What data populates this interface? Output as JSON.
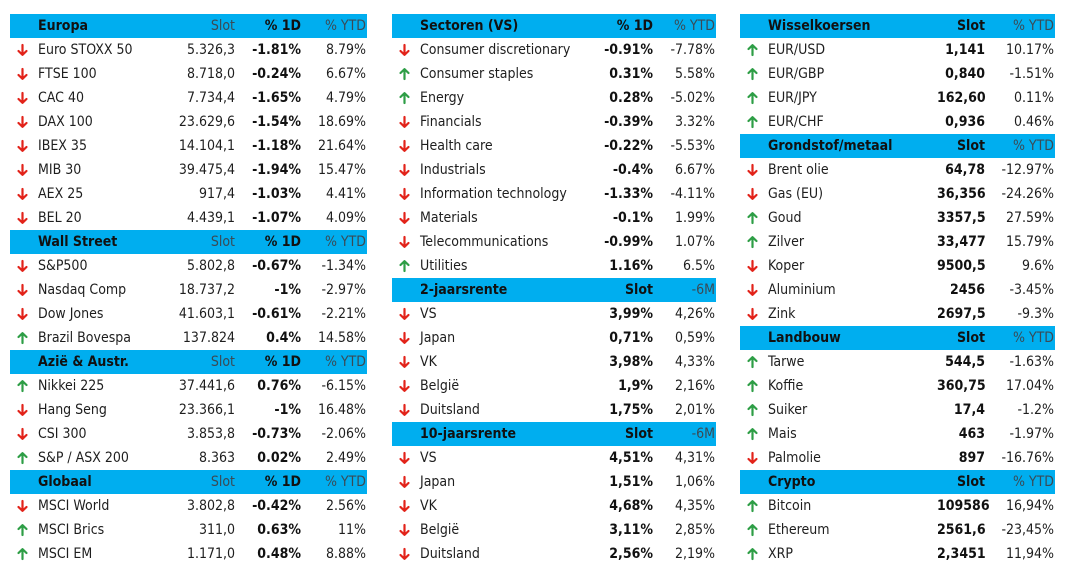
{
  "colors": {
    "header_bg": "#00aeef",
    "arrow_up": "#2e9e46",
    "arrow_down": "#e2231a"
  },
  "columns": [
    {
      "sections": [
        {
          "title": "Europa",
          "headers": [
            "Slot",
            "% 1D",
            "% YTD"
          ],
          "rows": [
            {
              "dir": "down",
              "name": "Euro STOXX 50",
              "v1": "5.326,3",
              "v2": "-1.81%",
              "v3": "8.79%"
            },
            {
              "dir": "down",
              "name": "FTSE 100",
              "v1": "8.718,0",
              "v2": "-0.24%",
              "v3": "6.67%"
            },
            {
              "dir": "down",
              "name": "CAC 40",
              "v1": "7.734,4",
              "v2": "-1.65%",
              "v3": "4.79%"
            },
            {
              "dir": "down",
              "name": "DAX 100",
              "v1": "23.629,6",
              "v2": "-1.54%",
              "v3": "18.69%"
            },
            {
              "dir": "down",
              "name": "IBEX 35",
              "v1": "14.104,1",
              "v2": "-1.18%",
              "v3": "21.64%"
            },
            {
              "dir": "down",
              "name": "MIB 30",
              "v1": "39.475,4",
              "v2": "-1.94%",
              "v3": "15.47%"
            },
            {
              "dir": "down",
              "name": "AEX 25",
              "v1": "917,4",
              "v2": "-1.03%",
              "v3": "4.41%"
            },
            {
              "dir": "down",
              "name": "BEL 20",
              "v1": "4.439,1",
              "v2": "-1.07%",
              "v3": "4.09%"
            }
          ]
        },
        {
          "title": "Wall Street",
          "headers": [
            "Slot",
            "% 1D",
            "% YTD"
          ],
          "rows": [
            {
              "dir": "down",
              "name": "S&P500",
              "v1": "5.802,8",
              "v2": "-0.67%",
              "v3": "-1.34%"
            },
            {
              "dir": "down",
              "name": "Nasdaq Comp",
              "v1": "18.737,2",
              "v2": "-1%",
              "v3": "-2.97%"
            },
            {
              "dir": "down",
              "name": "Dow Jones",
              "v1": "41.603,1",
              "v2": "-0.61%",
              "v3": "-2.21%"
            },
            {
              "dir": "up",
              "name": "Brazil Bovespa",
              "v1": "137.824",
              "v2": "0.4%",
              "v3": "14.58%"
            }
          ]
        },
        {
          "title": "Azië & Austr.",
          "headers": [
            "Slot",
            "% 1D",
            "% YTD"
          ],
          "rows": [
            {
              "dir": "up",
              "name": "Nikkei 225",
              "v1": "37.441,6",
              "v2": "0.76%",
              "v3": "-6.15%"
            },
            {
              "dir": "down",
              "name": "Hang Seng",
              "v1": "23.366,1",
              "v2": "-1%",
              "v3": "16.48%"
            },
            {
              "dir": "down",
              "name": "CSI 300",
              "v1": "3.853,8",
              "v2": "-0.73%",
              "v3": "-2.06%"
            },
            {
              "dir": "up",
              "name": "S&P / ASX 200",
              "v1": "8.363",
              "v2": "0.02%",
              "v3": "2.49%"
            }
          ]
        },
        {
          "title": "Globaal",
          "headers": [
            "Slot",
            "% 1D",
            "% YTD"
          ],
          "rows": [
            {
              "dir": "down",
              "name": "MSCI World",
              "v1": "3.802,8",
              "v2": "-0.42%",
              "v3": "2.56%"
            },
            {
              "dir": "up",
              "name": "MSCI Brics",
              "v1": "311,0",
              "v2": "0.63%",
              "v3": "11%"
            },
            {
              "dir": "up",
              "name": "MSCI EM",
              "v1": "1.171,0",
              "v2": "0.48%",
              "v3": "8.88%"
            }
          ]
        }
      ]
    },
    {
      "sections": [
        {
          "title": "Sectoren (VS)",
          "headers": [
            "% 1D",
            "% YTD"
          ],
          "rows": [
            {
              "dir": "down",
              "name": "Consumer discretionary",
              "v1": "-0.91%",
              "v2": "-7.78%"
            },
            {
              "dir": "up",
              "name": "Consumer staples",
              "v1": "0.31%",
              "v2": "5.58%"
            },
            {
              "dir": "up",
              "name": "Energy",
              "v1": "0.28%",
              "v2": "-5.02%"
            },
            {
              "dir": "down",
              "name": "Financials",
              "v1": "-0.39%",
              "v2": "3.32%"
            },
            {
              "dir": "down",
              "name": "Health care",
              "v1": "-0.22%",
              "v2": "-5.53%"
            },
            {
              "dir": "down",
              "name": "Industrials",
              "v1": "-0.4%",
              "v2": "6.67%"
            },
            {
              "dir": "down",
              "name": "Information technology",
              "v1": "-1.33%",
              "v2": "-4.11%"
            },
            {
              "dir": "down",
              "name": "Materials",
              "v1": "-0.1%",
              "v2": "1.99%"
            },
            {
              "dir": "down",
              "name": "Telecommunications",
              "v1": "-0.99%",
              "v2": "1.07%"
            },
            {
              "dir": "up",
              "name": "Utilities",
              "v1": "1.16%",
              "v2": "6.5%"
            }
          ]
        },
        {
          "title": "2-jaarsrente",
          "headers": [
            "Slot",
            "-6M"
          ],
          "rows": [
            {
              "dir": "down",
              "name": "VS",
              "v1": "3,99%",
              "v2": "4,26%"
            },
            {
              "dir": "down",
              "name": "Japan",
              "v1": "0,71%",
              "v2": "0,59%"
            },
            {
              "dir": "down",
              "name": "VK",
              "v1": "3,98%",
              "v2": "4,33%"
            },
            {
              "dir": "down",
              "name": "België",
              "v1": "1,9%",
              "v2": "2,16%"
            },
            {
              "dir": "down",
              "name": "Duitsland",
              "v1": "1,75%",
              "v2": "2,01%"
            }
          ]
        },
        {
          "title": "10-jaarsrente",
          "headers": [
            "Slot",
            "-6M"
          ],
          "rows": [
            {
              "dir": "down",
              "name": "VS",
              "v1": "4,51%",
              "v2": "4,31%"
            },
            {
              "dir": "down",
              "name": "Japan",
              "v1": "1,51%",
              "v2": "1,06%"
            },
            {
              "dir": "down",
              "name": "VK",
              "v1": "4,68%",
              "v2": "4,35%"
            },
            {
              "dir": "down",
              "name": "België",
              "v1": "3,11%",
              "v2": "2,85%"
            },
            {
              "dir": "down",
              "name": "Duitsland",
              "v1": "2,56%",
              "v2": "2,19%"
            }
          ]
        }
      ]
    },
    {
      "sections": [
        {
          "title": "Wisselkoersen",
          "headers": [
            "Slot",
            "% YTD"
          ],
          "rows": [
            {
              "dir": "up",
              "name": "EUR/USD",
              "v1": "1,141",
              "v2": "10.17%"
            },
            {
              "dir": "up",
              "name": "EUR/GBP",
              "v1": "0,840",
              "v2": "-1.51%"
            },
            {
              "dir": "up",
              "name": "EUR/JPY",
              "v1": "162,60",
              "v2": "0.11%"
            },
            {
              "dir": "up",
              "name": "EUR/CHF",
              "v1": "0,936",
              "v2": "0.46%"
            }
          ]
        },
        {
          "title": "Grondstof/metaal",
          "headers": [
            "Slot",
            "% YTD"
          ],
          "rows": [
            {
              "dir": "down",
              "name": "Brent olie",
              "v1": "64,78",
              "v2": "-12.97%"
            },
            {
              "dir": "down",
              "name": "Gas (EU)",
              "v1": "36,356",
              "v2": "-24.26%"
            },
            {
              "dir": "up",
              "name": "Goud",
              "v1": "3357,5",
              "v2": "27.59%"
            },
            {
              "dir": "up",
              "name": "Zilver",
              "v1": "33,477",
              "v2": "15.79%"
            },
            {
              "dir": "down",
              "name": "Koper",
              "v1": "9500,5",
              "v2": "9.6%"
            },
            {
              "dir": "down",
              "name": "Aluminium",
              "v1": "2456",
              "v2": "-3.45%"
            },
            {
              "dir": "down",
              "name": "Zink",
              "v1": "2697,5",
              "v2": "-9.3%"
            }
          ]
        },
        {
          "title": "Landbouw",
          "headers": [
            "Slot",
            "% YTD"
          ],
          "rows": [
            {
              "dir": "up",
              "name": "Tarwe",
              "v1": "544,5",
              "v2": "-1.63%"
            },
            {
              "dir": "up",
              "name": "Koffie",
              "v1": "360,75",
              "v2": "17.04%"
            },
            {
              "dir": "up",
              "name": "Suiker",
              "v1": "17,4",
              "v2": "-1.2%"
            },
            {
              "dir": "up",
              "name": "Mais",
              "v1": "463",
              "v2": "-1.97%"
            },
            {
              "dir": "down",
              "name": "Palmolie",
              "v1": "897",
              "v2": "-16.76%"
            }
          ]
        },
        {
          "title": "Crypto",
          "headers": [
            "Slot",
            "% YTD"
          ],
          "rows": [
            {
              "dir": "up",
              "name": "Bitcoin",
              "v1": "109586",
              "v2": "16,94%"
            },
            {
              "dir": "up",
              "name": "Ethereum",
              "v1": "2561,6",
              "v2": "-23,45%"
            },
            {
              "dir": "up",
              "name": "XRP",
              "v1": "2,3451",
              "v2": "11,94%"
            }
          ]
        }
      ]
    }
  ]
}
